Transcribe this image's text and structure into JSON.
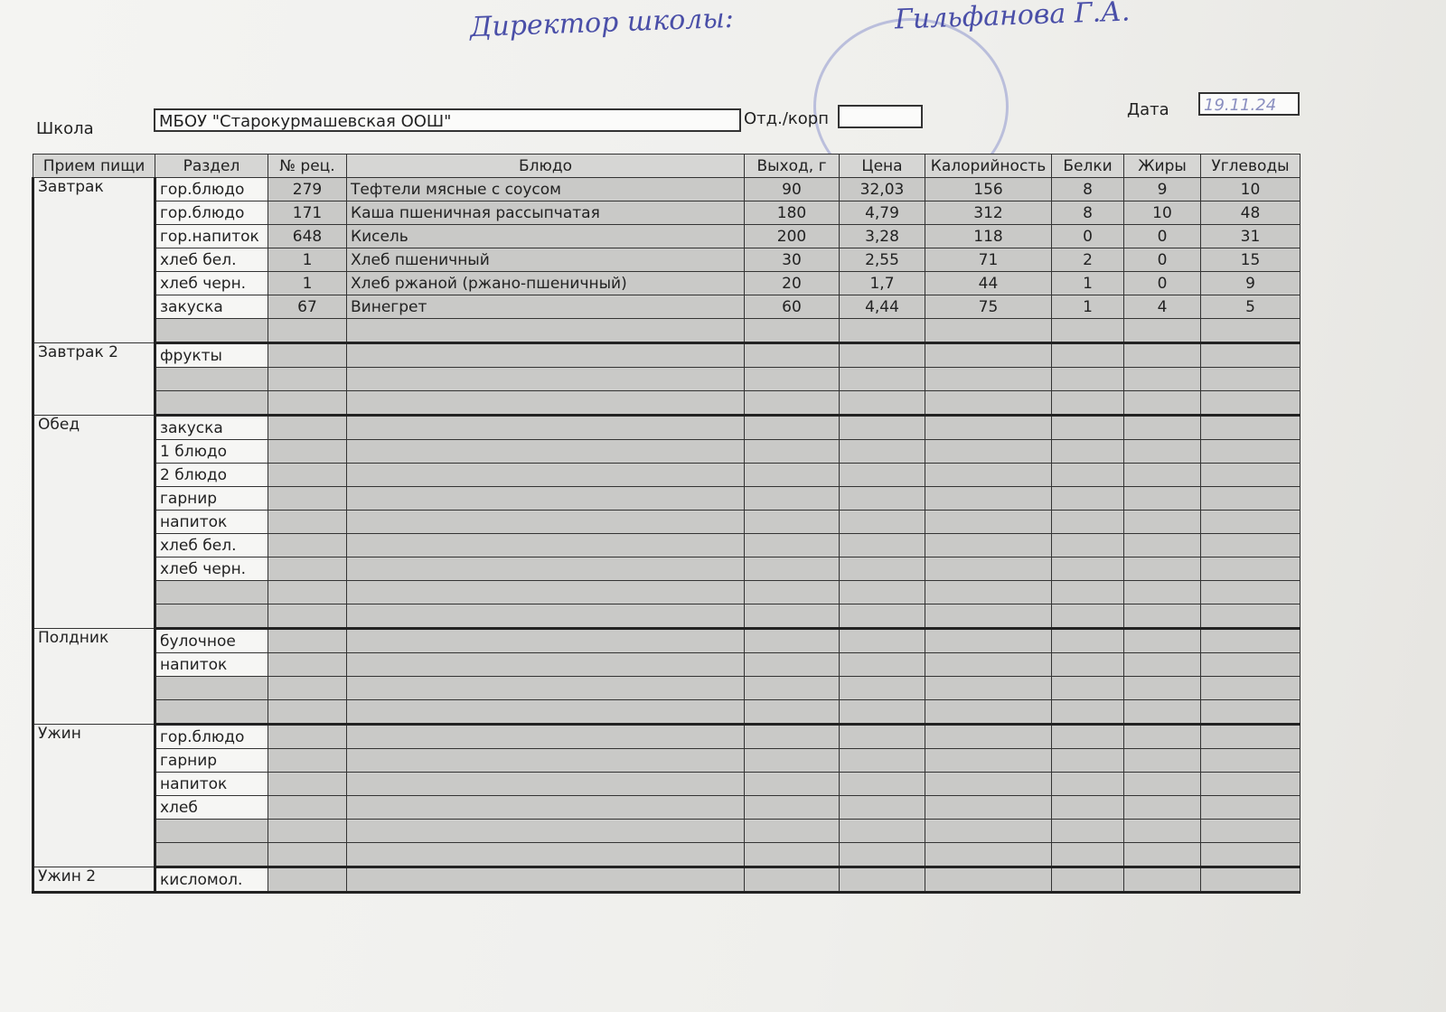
{
  "signature": {
    "title": "Директор школы:",
    "name": "Гильфанова Г.А."
  },
  "header": {
    "school_label": "Школа",
    "school": "МБОУ \"Старокурмашевская ООШ\"",
    "branch_label": "Отд./корп",
    "date_label": "Дата",
    "date": "19.11.24"
  },
  "columns": [
    "Прием пищи",
    "Раздел",
    "№ рец.",
    "Блюдо",
    "Выход, г",
    "Цена",
    "Калорийность",
    "Белки",
    "Жиры",
    "Углеводы"
  ],
  "meals": [
    {
      "name": "Завтрак",
      "rows": [
        {
          "section": "гор.блюдо",
          "recipe": 279,
          "dish": "Тефтели мясные с соусом",
          "yield": 90,
          "price": "32,03",
          "calories": 156,
          "protein": 8,
          "fat": 9,
          "carbs": 10
        },
        {
          "section": "гор.блюдо",
          "recipe": 171,
          "dish": "Каша пшеничная рассыпчатая",
          "yield": 180,
          "price": "4,79",
          "calories": 312,
          "protein": 8,
          "fat": 10,
          "carbs": 48
        },
        {
          "section": "гор.напиток",
          "recipe": 648,
          "dish": "Кисель",
          "yield": 200,
          "price": "3,28",
          "calories": 118,
          "protein": 0,
          "fat": 0,
          "carbs": 31
        },
        {
          "section": "хлеб бел.",
          "recipe": 1,
          "dish": "Хлеб пшеничный",
          "yield": 30,
          "price": "2,55",
          "calories": 71,
          "protein": 2,
          "fat": 0,
          "carbs": 15
        },
        {
          "section": "хлеб черн.",
          "recipe": 1,
          "dish": "Хлеб ржаной (ржано-пшеничный)",
          "yield": 20,
          "price": "1,7",
          "calories": 44,
          "protein": 1,
          "fat": 0,
          "carbs": 9
        },
        {
          "section": "закуска",
          "recipe": 67,
          "dish": "Винегрет",
          "yield": 60,
          "price": "4,44",
          "calories": 75,
          "protein": 1,
          "fat": 4,
          "carbs": 5
        },
        null
      ]
    },
    {
      "name": "Завтрак 2",
      "rows": [
        {
          "section": "фрукты"
        },
        null,
        null
      ]
    },
    {
      "name": "Обед",
      "rows": [
        {
          "section": "закуска"
        },
        {
          "section": "1 блюдо"
        },
        {
          "section": "2 блюдо"
        },
        {
          "section": "гарнир"
        },
        {
          "section": "напиток"
        },
        {
          "section": "хлеб бел."
        },
        {
          "section": "хлеб черн."
        },
        null,
        null
      ]
    },
    {
      "name": "Полдник",
      "rows": [
        {
          "section": "булочное"
        },
        {
          "section": "напиток"
        },
        null,
        null
      ]
    },
    {
      "name": "Ужин",
      "rows": [
        {
          "section": "гор.блюдо"
        },
        {
          "section": "гарнир"
        },
        {
          "section": "напиток"
        },
        {
          "section": "хлеб"
        },
        null,
        null
      ]
    },
    {
      "name": "Ужин 2",
      "rows": [
        {
          "section": "кисломол."
        }
      ]
    }
  ]
}
